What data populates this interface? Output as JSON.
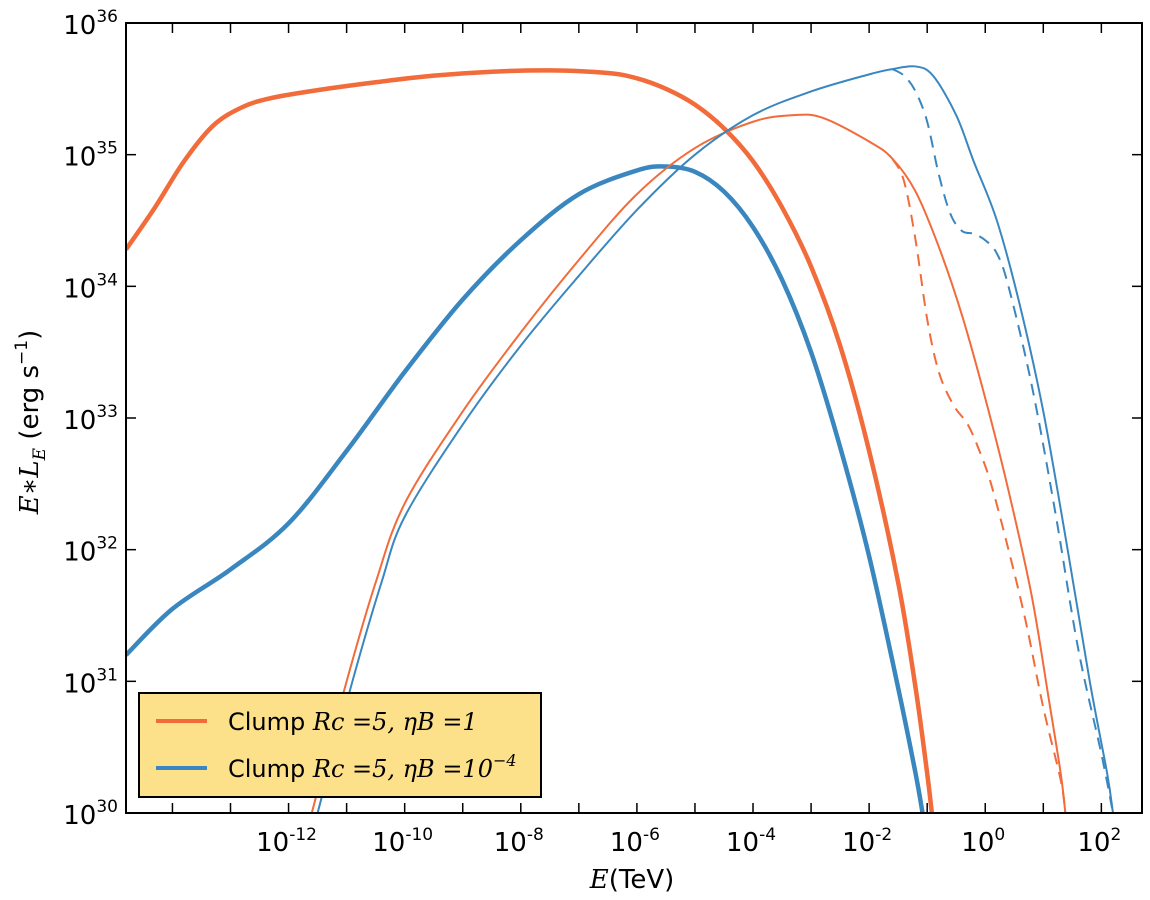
{
  "chart_data": {
    "type": "line",
    "log_x": true,
    "log_y": true,
    "xlim_log10": [
      -14.8,
      2.7
    ],
    "ylim_log10": [
      30,
      36
    ],
    "x_ticks": [
      {
        "base": "10",
        "exp": "-12",
        "value": -12
      },
      {
        "base": "10",
        "exp": "-10",
        "value": -10
      },
      {
        "base": "10",
        "exp": "-8",
        "value": -8
      },
      {
        "base": "10",
        "exp": "-6",
        "value": -6
      },
      {
        "base": "10",
        "exp": "-4",
        "value": -4
      },
      {
        "base": "10",
        "exp": "-2",
        "value": -2
      },
      {
        "base": "10",
        "exp": "0",
        "value": 0
      },
      {
        "base": "10",
        "exp": "2",
        "value": 2
      }
    ],
    "y_ticks": [
      {
        "base": "10",
        "exp": "30",
        "value": 30
      },
      {
        "base": "10",
        "exp": "31",
        "value": 31
      },
      {
        "base": "10",
        "exp": "32",
        "value": 32
      },
      {
        "base": "10",
        "exp": "33",
        "value": 33
      },
      {
        "base": "10",
        "exp": "34",
        "value": 34
      },
      {
        "base": "10",
        "exp": "35",
        "value": 35
      },
      {
        "base": "10",
        "exp": "36",
        "value": 36
      }
    ],
    "xlabel": {
      "var": "E",
      "rest": "(TeV)"
    },
    "ylabel": {
      "var": "E∗L",
      "sub": "E",
      "rest": " (erg s",
      "exp": "−1",
      "close": ")"
    },
    "legend": {
      "placement": "lower-left",
      "background": "#fde08a",
      "entries": [
        {
          "prefix": "Clump ",
          "math": "Rc =5, ηB =1",
          "color": "#f26b3a"
        },
        {
          "prefix": "Clump ",
          "math": "Rc =5, ηB =10",
          "math_exp": "−4",
          "color": "#3a87c0"
        }
      ]
    },
    "series": [
      {
        "id": "orange-thick",
        "color": "#f26b3a",
        "style": "solid",
        "weight": "thick",
        "legend_index": 0,
        "points": [
          [
            -14.8,
            34.28
          ],
          [
            -14.3,
            34.6
          ],
          [
            -13.8,
            34.95
          ],
          [
            -13.3,
            35.22
          ],
          [
            -12.8,
            35.36
          ],
          [
            -12.3,
            35.43
          ],
          [
            -11.5,
            35.49
          ],
          [
            -10.5,
            35.55
          ],
          [
            -9.5,
            35.6
          ],
          [
            -8.5,
            35.63
          ],
          [
            -7.5,
            35.64
          ],
          [
            -6.5,
            35.62
          ],
          [
            -6.0,
            35.58
          ],
          [
            -5.5,
            35.5
          ],
          [
            -5.0,
            35.38
          ],
          [
            -4.5,
            35.2
          ],
          [
            -4.0,
            34.95
          ],
          [
            -3.5,
            34.6
          ],
          [
            -3.0,
            34.15
          ],
          [
            -2.5,
            33.55
          ],
          [
            -2.0,
            32.75
          ],
          [
            -1.5,
            31.75
          ],
          [
            -1.2,
            30.95
          ],
          [
            -1.0,
            30.3
          ],
          [
            -0.92,
            30.0
          ]
        ]
      },
      {
        "id": "blue-thick",
        "color": "#3a87c0",
        "style": "solid",
        "weight": "thick",
        "legend_index": 1,
        "points": [
          [
            -14.8,
            31.2
          ],
          [
            -14.0,
            31.55
          ],
          [
            -13.0,
            31.85
          ],
          [
            -12.0,
            32.2
          ],
          [
            -11.0,
            32.75
          ],
          [
            -10.0,
            33.35
          ],
          [
            -9.0,
            33.9
          ],
          [
            -8.0,
            34.35
          ],
          [
            -7.0,
            34.7
          ],
          [
            -6.0,
            34.88
          ],
          [
            -5.5,
            34.91
          ],
          [
            -5.0,
            34.87
          ],
          [
            -4.5,
            34.72
          ],
          [
            -4.0,
            34.45
          ],
          [
            -3.5,
            34.05
          ],
          [
            -3.0,
            33.5
          ],
          [
            -2.5,
            32.78
          ],
          [
            -2.0,
            31.95
          ],
          [
            -1.5,
            30.95
          ],
          [
            -1.2,
            30.3
          ],
          [
            -1.08,
            30.0
          ]
        ]
      },
      {
        "id": "orange-thin",
        "color": "#f26b3a",
        "style": "solid",
        "weight": "thin",
        "points": [
          [
            -11.6,
            30.0
          ],
          [
            -11.0,
            31.0
          ],
          [
            -10.5,
            31.75
          ],
          [
            -10.0,
            32.35
          ],
          [
            -9.0,
            33.05
          ],
          [
            -8.0,
            33.65
          ],
          [
            -7.0,
            34.2
          ],
          [
            -6.0,
            34.7
          ],
          [
            -5.0,
            35.05
          ],
          [
            -4.0,
            35.25
          ],
          [
            -3.3,
            35.3
          ],
          [
            -2.8,
            35.28
          ],
          [
            -2.0,
            35.1
          ],
          [
            -1.6,
            34.97
          ],
          [
            -1.2,
            34.72
          ],
          [
            -0.8,
            34.3
          ],
          [
            -0.4,
            33.78
          ],
          [
            0.0,
            33.15
          ],
          [
            0.4,
            32.45
          ],
          [
            0.8,
            31.65
          ],
          [
            1.1,
            30.85
          ],
          [
            1.3,
            30.3
          ],
          [
            1.38,
            30.0
          ]
        ]
      },
      {
        "id": "blue-thin",
        "color": "#3a87c0",
        "style": "solid",
        "weight": "thin",
        "points": [
          [
            -11.5,
            30.0
          ],
          [
            -10.9,
            31.0
          ],
          [
            -10.4,
            31.75
          ],
          [
            -10.0,
            32.25
          ],
          [
            -9.0,
            32.95
          ],
          [
            -8.0,
            33.55
          ],
          [
            -7.0,
            34.08
          ],
          [
            -6.0,
            34.58
          ],
          [
            -5.0,
            35.0
          ],
          [
            -4.0,
            35.3
          ],
          [
            -3.0,
            35.48
          ],
          [
            -2.0,
            35.61
          ],
          [
            -1.6,
            35.65
          ],
          [
            -1.2,
            35.67
          ],
          [
            -0.9,
            35.6
          ],
          [
            -0.5,
            35.3
          ],
          [
            -0.2,
            34.95
          ],
          [
            0.2,
            34.5
          ],
          [
            0.6,
            33.85
          ],
          [
            1.0,
            33.05
          ],
          [
            1.4,
            32.05
          ],
          [
            1.8,
            31.0
          ],
          [
            2.1,
            30.3
          ],
          [
            2.2,
            30.0
          ]
        ]
      },
      {
        "id": "orange-dashed",
        "color": "#f26b3a",
        "style": "dashed",
        "weight": "thin",
        "points": [
          [
            -1.6,
            34.97
          ],
          [
            -1.4,
            34.8
          ],
          [
            -1.2,
            34.35
          ],
          [
            -1.0,
            33.75
          ],
          [
            -0.8,
            33.35
          ],
          [
            -0.55,
            33.1
          ],
          [
            -0.3,
            32.95
          ],
          [
            -0.1,
            32.75
          ],
          [
            0.1,
            32.5
          ],
          [
            0.4,
            32.0
          ],
          [
            0.7,
            31.45
          ],
          [
            1.0,
            30.8
          ],
          [
            1.3,
            30.25
          ],
          [
            1.38,
            30.0
          ]
        ]
      },
      {
        "id": "blue-dashed",
        "color": "#3a87c0",
        "style": "dashed",
        "weight": "thin",
        "points": [
          [
            -1.6,
            35.65
          ],
          [
            -1.4,
            35.6
          ],
          [
            -1.2,
            35.48
          ],
          [
            -1.0,
            35.25
          ],
          [
            -0.8,
            34.85
          ],
          [
            -0.6,
            34.55
          ],
          [
            -0.4,
            34.42
          ],
          [
            -0.2,
            34.4
          ],
          [
            0.0,
            34.35
          ],
          [
            0.2,
            34.25
          ],
          [
            0.4,
            34.0
          ],
          [
            0.8,
            33.25
          ],
          [
            1.2,
            32.3
          ],
          [
            1.6,
            31.25
          ],
          [
            2.0,
            30.45
          ],
          [
            2.2,
            30.0
          ]
        ]
      }
    ]
  }
}
